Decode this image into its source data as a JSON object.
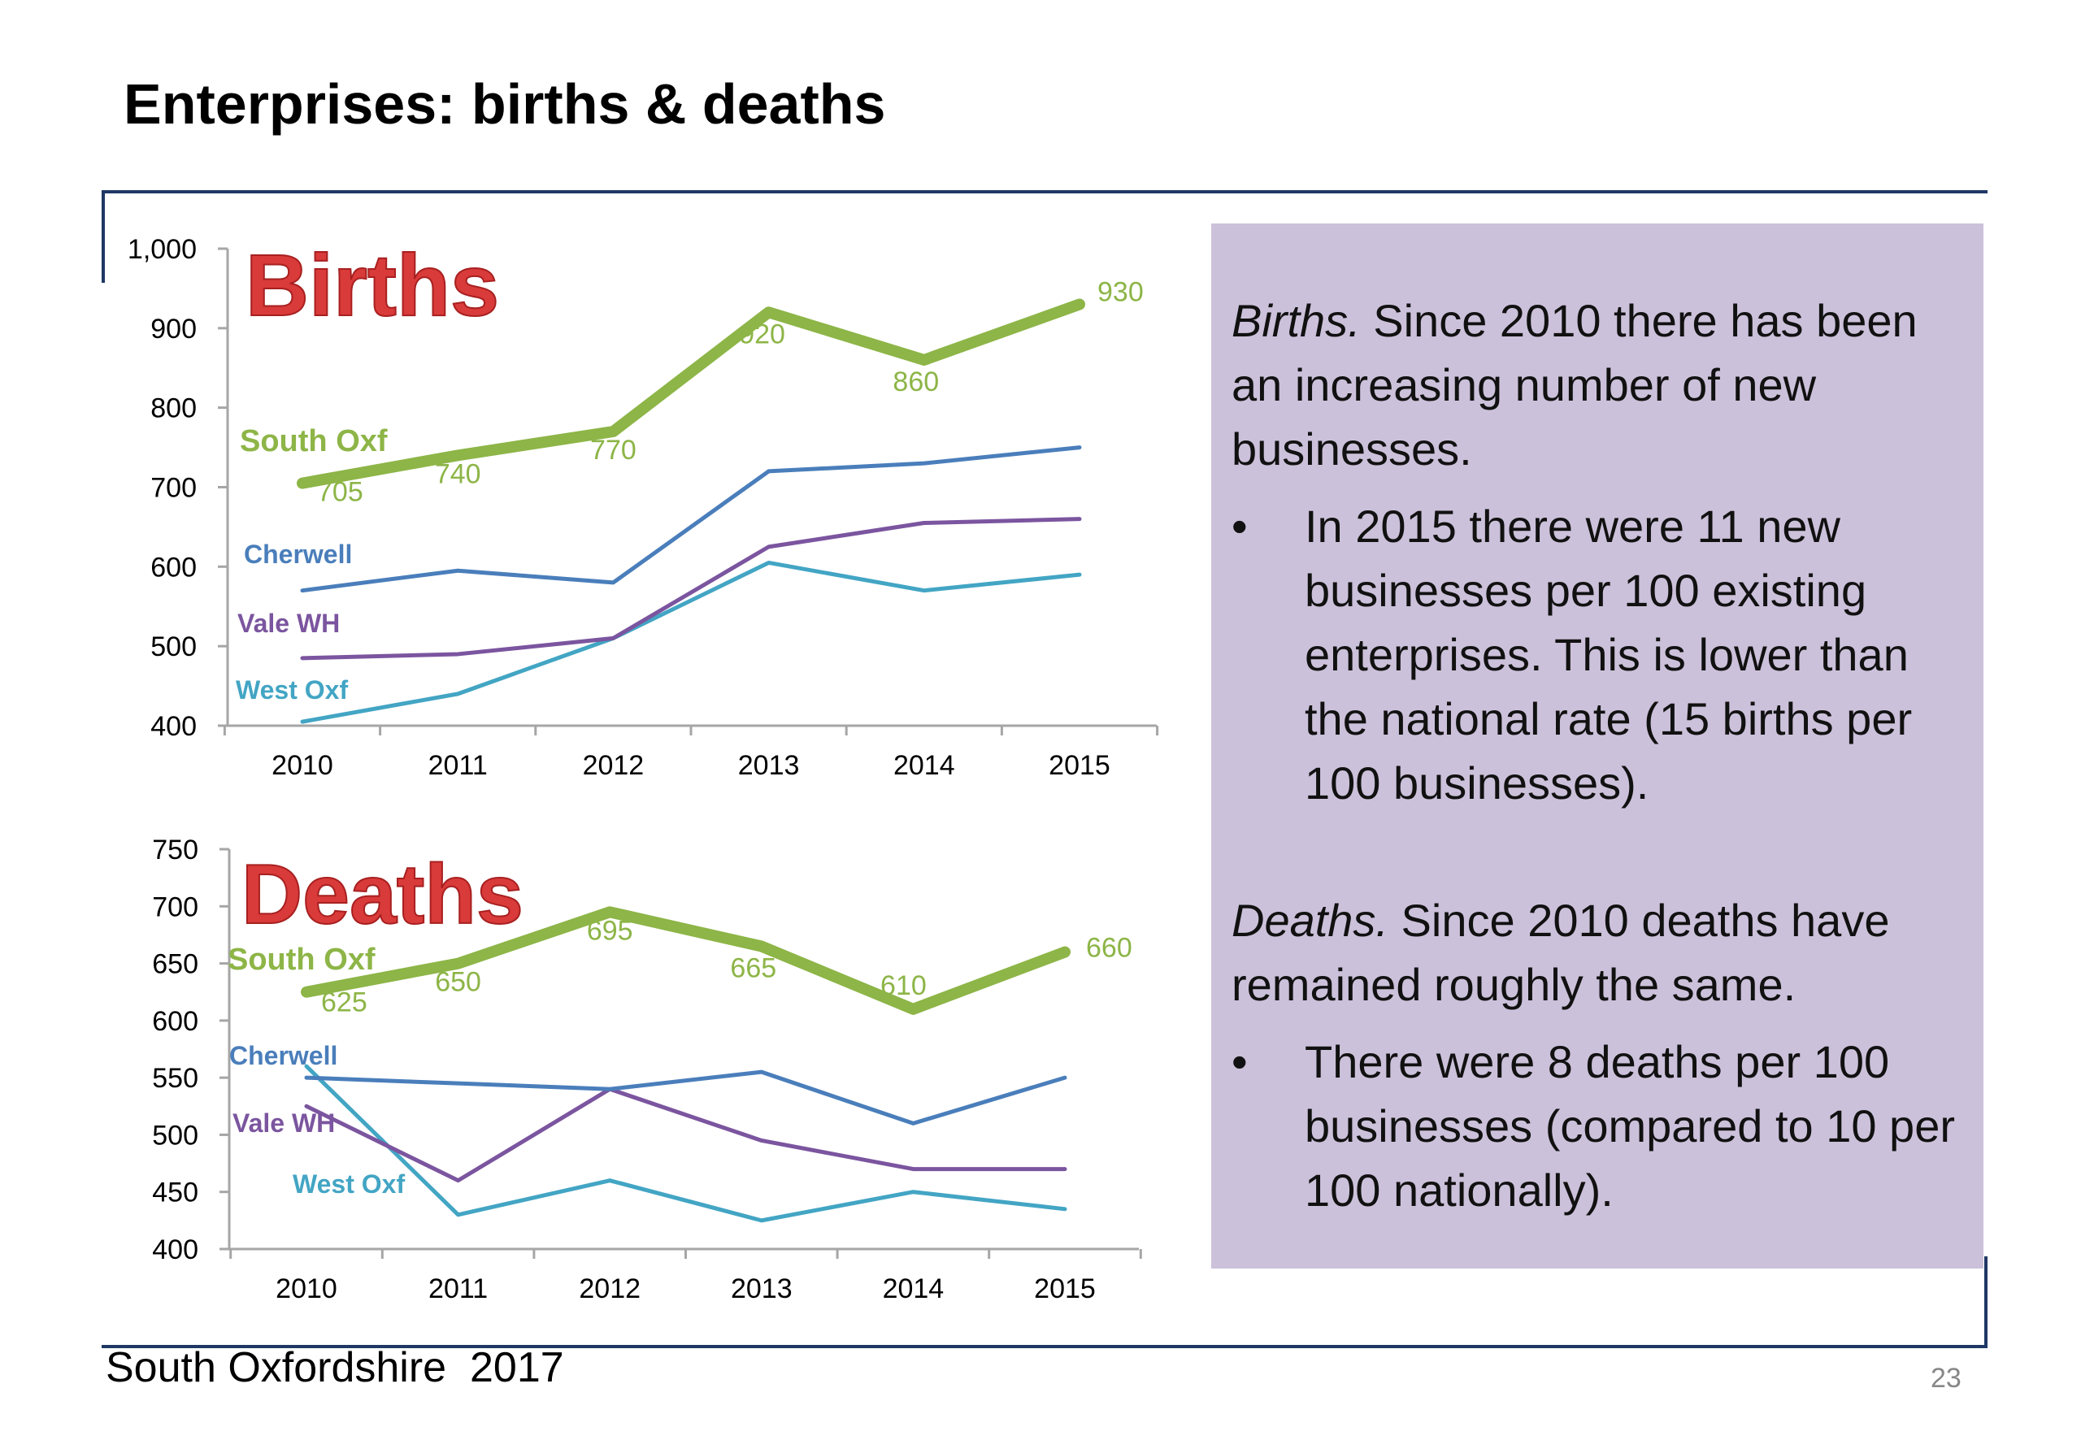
{
  "title": "Enterprises: births & deaths",
  "footer": {
    "left": "South Oxfordshire  2017",
    "page_number": "23"
  },
  "colors": {
    "south_oxf": "#8db547",
    "cherwell": "#4a7ebb",
    "vale_wh": "#7b559f",
    "west_oxf": "#43a5c4",
    "panel": "#ccc1da",
    "frame": "#1f3864",
    "chart_title": "#d93a3a"
  },
  "text_box": {
    "births_lead": "Births.",
    "births_text": " Since 2010 there has been an increasing number of new businesses.",
    "births_bullet": "In 2015 there were 11 new businesses per 100 existing enterprises.  This is lower than the national rate (15 births per 100 businesses).",
    "deaths_lead": "Deaths.",
    "deaths_text": " Since 2010 deaths have remained roughly the same.",
    "deaths_bullet": "There were 8 deaths per 100 businesses (compared to 10 per 100 nationally).",
    "bullet_char": "•"
  },
  "chart_data": [
    {
      "type": "line",
      "title": "Births",
      "categories": [
        "2010",
        "2011",
        "2012",
        "2013",
        "2014",
        "2015"
      ],
      "ylim": [
        400,
        1000
      ],
      "yticks": [
        400,
        500,
        600,
        700,
        800,
        900,
        1000
      ],
      "ytick_labels": [
        "400",
        "500",
        "600",
        "700",
        "800",
        "900",
        "1,000"
      ],
      "grid": false,
      "series": [
        {
          "name": "South Oxf",
          "values": [
            705,
            740,
            770,
            920,
            860,
            930
          ],
          "data_labels": [
            "705",
            "740",
            "770",
            "920",
            "860",
            "930"
          ]
        },
        {
          "name": "Cherwell",
          "values": [
            570,
            595,
            580,
            720,
            730,
            750
          ]
        },
        {
          "name": "Vale WH",
          "values": [
            485,
            490,
            510,
            625,
            655,
            660
          ]
        },
        {
          "name": "West Oxf",
          "values": [
            405,
            440,
            510,
            605,
            570,
            590
          ]
        }
      ]
    },
    {
      "type": "line",
      "title": "Deaths",
      "categories": [
        "2010",
        "2011",
        "2012",
        "2013",
        "2014",
        "2015"
      ],
      "ylim": [
        400,
        750
      ],
      "yticks": [
        400,
        450,
        500,
        550,
        600,
        650,
        700,
        750
      ],
      "ytick_labels": [
        "400",
        "450",
        "500",
        "550",
        "600",
        "650",
        "700",
        "750"
      ],
      "grid": false,
      "series": [
        {
          "name": "South Oxf",
          "values": [
            625,
            650,
            695,
            665,
            610,
            660
          ],
          "data_labels": [
            "625",
            "650",
            "695",
            "665",
            "610",
            "660"
          ]
        },
        {
          "name": "Cherwell",
          "values": [
            550,
            545,
            540,
            555,
            510,
            550
          ]
        },
        {
          "name": "Vale WH",
          "values": [
            525,
            460,
            540,
            495,
            470,
            470
          ]
        },
        {
          "name": "West Oxf",
          "values": [
            560,
            430,
            460,
            425,
            450,
            435
          ]
        }
      ]
    }
  ]
}
